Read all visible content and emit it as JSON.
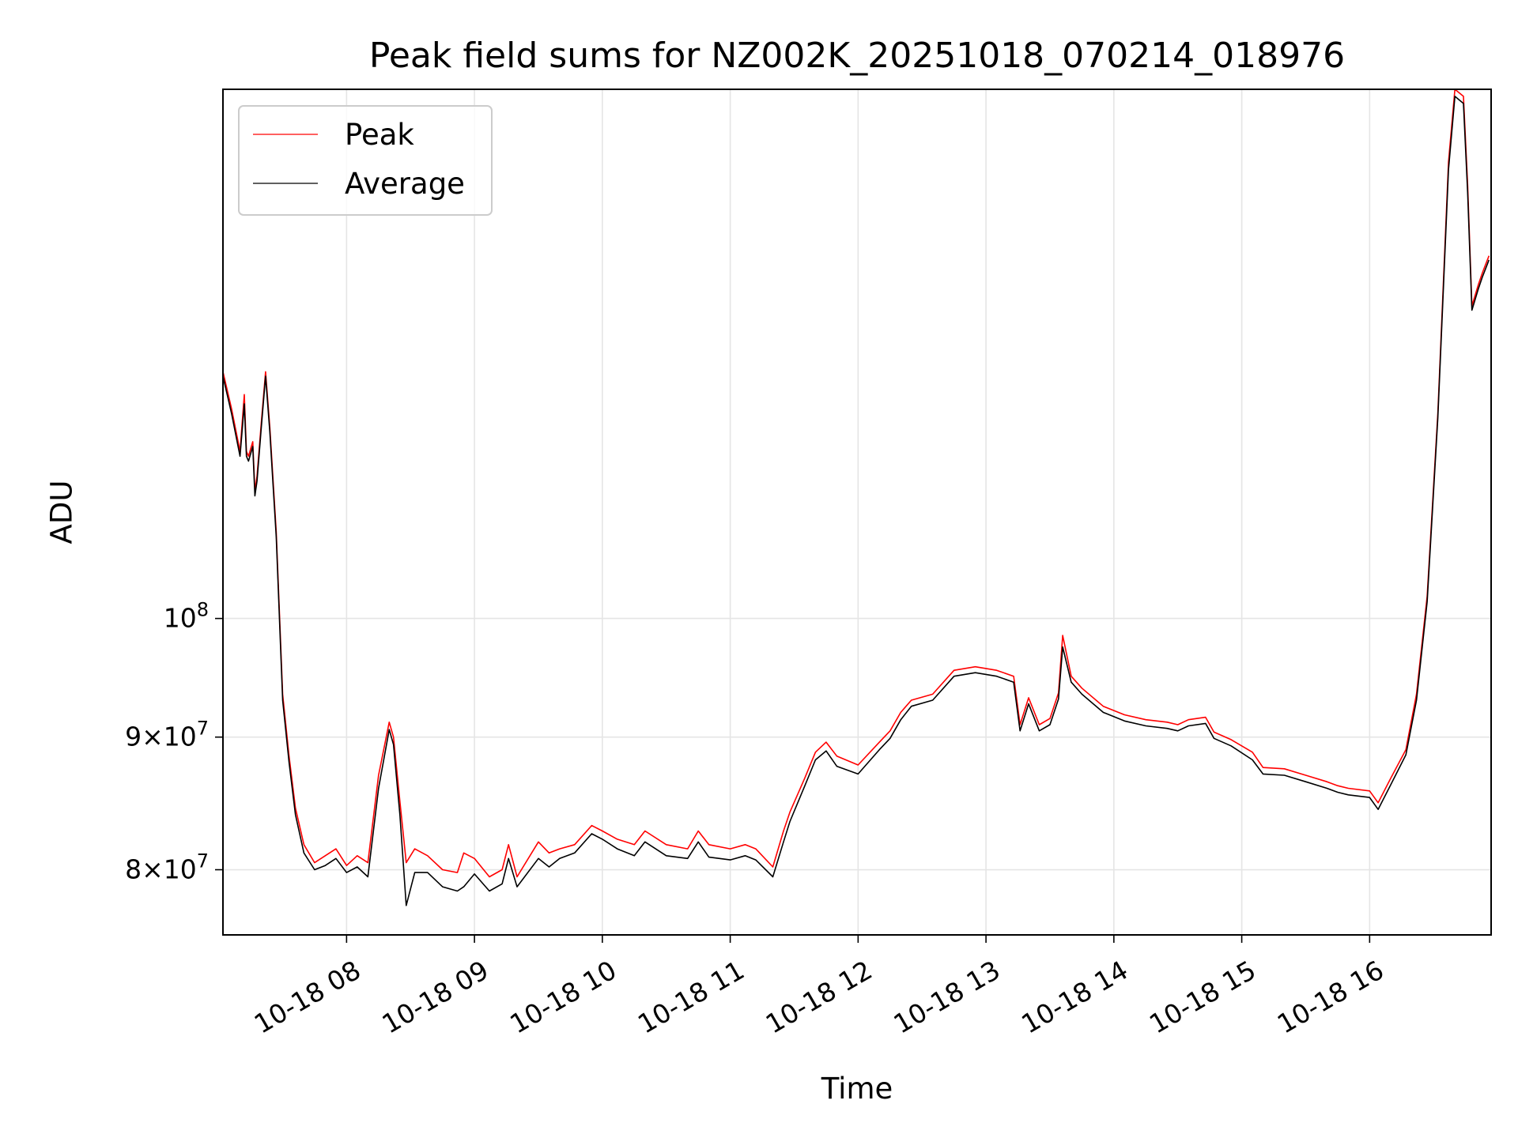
{
  "chart_data": {
    "type": "line",
    "title": "Peak field sums for NZ002K_20251018_070214_018976",
    "xlabel": "Time",
    "ylabel": "ADU",
    "yscale": "log",
    "grid": true,
    "legend_position": "top-left",
    "xlim": [
      "2025-10-18 07:02",
      "2025-10-18 16:57"
    ],
    "ylim": [
      75500000,
      160000000
    ],
    "x_ticks": [
      "10-18 08",
      "10-18 09",
      "10-18 10",
      "10-18 11",
      "10-18 12",
      "10-18 13",
      "10-18 14",
      "10-18 15",
      "10-18 16"
    ],
    "x_tick_values": [
      "2025-10-18 08:00",
      "2025-10-18 09:00",
      "2025-10-18 10:00",
      "2025-10-18 11:00",
      "2025-10-18 12:00",
      "2025-10-18 13:00",
      "2025-10-18 14:00",
      "2025-10-18 15:00",
      "2025-10-18 16:00"
    ],
    "y_ticks": [
      {
        "value": 80000000,
        "mantissa": "8",
        "exp": "7"
      },
      {
        "value": 90000000,
        "mantissa": "9",
        "exp": "7"
      },
      {
        "value": 100000000,
        "mantissa": "",
        "exp": "8"
      }
    ],
    "series": [
      {
        "name": "Peak",
        "color": "#ff0000",
        "x": [
          "2025-10-18 07:02",
          "2025-10-18 07:06",
          "2025-10-18 07:10",
          "2025-10-18 07:12",
          "2025-10-18 07:13",
          "2025-10-18 07:14",
          "2025-10-18 07:16",
          "2025-10-18 07:17",
          "2025-10-18 07:18",
          "2025-10-18 07:20",
          "2025-10-18 07:22",
          "2025-10-18 07:24",
          "2025-10-18 07:27",
          "2025-10-18 07:30",
          "2025-10-18 07:33",
          "2025-10-18 07:36",
          "2025-10-18 07:40",
          "2025-10-18 07:45",
          "2025-10-18 07:50",
          "2025-10-18 07:55",
          "2025-10-18 08:00",
          "2025-10-18 08:05",
          "2025-10-18 08:10",
          "2025-10-18 08:15",
          "2025-10-18 08:20",
          "2025-10-18 08:22",
          "2025-10-18 08:25",
          "2025-10-18 08:28",
          "2025-10-18 08:32",
          "2025-10-18 08:38",
          "2025-10-18 08:45",
          "2025-10-18 08:52",
          "2025-10-18 08:55",
          "2025-10-18 09:00",
          "2025-10-18 09:07",
          "2025-10-18 09:13",
          "2025-10-18 09:16",
          "2025-10-18 09:20",
          "2025-10-18 09:30",
          "2025-10-18 09:35",
          "2025-10-18 09:40",
          "2025-10-18 09:47",
          "2025-10-18 09:55",
          "2025-10-18 10:00",
          "2025-10-18 10:07",
          "2025-10-18 10:15",
          "2025-10-18 10:20",
          "2025-10-18 10:30",
          "2025-10-18 10:40",
          "2025-10-18 10:45",
          "2025-10-18 10:50",
          "2025-10-18 11:00",
          "2025-10-18 11:07",
          "2025-10-18 11:12",
          "2025-10-18 11:20",
          "2025-10-18 11:25",
          "2025-10-18 11:28",
          "2025-10-18 11:35",
          "2025-10-18 11:40",
          "2025-10-18 11:45",
          "2025-10-18 11:50",
          "2025-10-18 12:00",
          "2025-10-18 12:10",
          "2025-10-18 12:15",
          "2025-10-18 12:20",
          "2025-10-18 12:25",
          "2025-10-18 12:35",
          "2025-10-18 12:45",
          "2025-10-18 12:55",
          "2025-10-18 13:05",
          "2025-10-18 13:13",
          "2025-10-18 13:16",
          "2025-10-18 13:20",
          "2025-10-18 13:25",
          "2025-10-18 13:30",
          "2025-10-18 13:34",
          "2025-10-18 13:36",
          "2025-10-18 13:40",
          "2025-10-18 13:45",
          "2025-10-18 13:55",
          "2025-10-18 14:05",
          "2025-10-18 14:15",
          "2025-10-18 14:25",
          "2025-10-18 14:30",
          "2025-10-18 14:35",
          "2025-10-18 14:43",
          "2025-10-18 14:47",
          "2025-10-18 14:55",
          "2025-10-18 15:05",
          "2025-10-18 15:10",
          "2025-10-18 15:20",
          "2025-10-18 15:30",
          "2025-10-18 15:40",
          "2025-10-18 15:45",
          "2025-10-18 15:50",
          "2025-10-18 16:00",
          "2025-10-18 16:04",
          "2025-10-18 16:10",
          "2025-10-18 16:17",
          "2025-10-18 16:22",
          "2025-10-18 16:27",
          "2025-10-18 16:32",
          "2025-10-18 16:37",
          "2025-10-18 16:40",
          "2025-10-18 16:44",
          "2025-10-18 16:46",
          "2025-10-18 16:48",
          "2025-10-18 16:51",
          "2025-10-18 16:53",
          "2025-10-18 16:56"
        ],
        "y": [
          124500000,
          120500000,
          116000000,
          122000000,
          116000000,
          115500000,
          117000000,
          112000000,
          113500000,
          119000000,
          124500000,
          118500000,
          108000000,
          93500000,
          88500000,
          84500000,
          81800000,
          80500000,
          81000000,
          81500000,
          80300000,
          81000000,
          80500000,
          87000000,
          91200000,
          90000000,
          85000000,
          80500000,
          81500000,
          81000000,
          80000000,
          79800000,
          81200000,
          80800000,
          79500000,
          80000000,
          81800000,
          79500000,
          82000000,
          81200000,
          81500000,
          81800000,
          83200000,
          82800000,
          82200000,
          81800000,
          82800000,
          81800000,
          81500000,
          82800000,
          81800000,
          81500000,
          81800000,
          81500000,
          80200000,
          82800000,
          84200000,
          86800000,
          88800000,
          89600000,
          88500000,
          87800000,
          89600000,
          90500000,
          92000000,
          93000000,
          93500000,
          95500000,
          95800000,
          95500000,
          95000000,
          91000000,
          93200000,
          91000000,
          91500000,
          93600000,
          98500000,
          95000000,
          94000000,
          92500000,
          91800000,
          91400000,
          91200000,
          91000000,
          91400000,
          91600000,
          90400000,
          89800000,
          88800000,
          87600000,
          87500000,
          87000000,
          86500000,
          86200000,
          86000000,
          85800000,
          84900000,
          86800000,
          89000000,
          93500000,
          102000000,
          120000000,
          150000000,
          160000000,
          159000000,
          147000000,
          132000000,
          134500000,
          136000000,
          138000000
        ]
      },
      {
        "name": "Average",
        "color": "#000000",
        "x": [
          "2025-10-18 07:02",
          "2025-10-18 07:06",
          "2025-10-18 07:10",
          "2025-10-18 07:12",
          "2025-10-18 07:13",
          "2025-10-18 07:14",
          "2025-10-18 07:16",
          "2025-10-18 07:17",
          "2025-10-18 07:18",
          "2025-10-18 07:20",
          "2025-10-18 07:22",
          "2025-10-18 07:24",
          "2025-10-18 07:27",
          "2025-10-18 07:30",
          "2025-10-18 07:33",
          "2025-10-18 07:36",
          "2025-10-18 07:40",
          "2025-10-18 07:45",
          "2025-10-18 07:50",
          "2025-10-18 07:55",
          "2025-10-18 08:00",
          "2025-10-18 08:05",
          "2025-10-18 08:10",
          "2025-10-18 08:15",
          "2025-10-18 08:20",
          "2025-10-18 08:22",
          "2025-10-18 08:25",
          "2025-10-18 08:28",
          "2025-10-18 08:32",
          "2025-10-18 08:38",
          "2025-10-18 08:45",
          "2025-10-18 08:52",
          "2025-10-18 08:55",
          "2025-10-18 09:00",
          "2025-10-18 09:07",
          "2025-10-18 09:13",
          "2025-10-18 09:16",
          "2025-10-18 09:20",
          "2025-10-18 09:30",
          "2025-10-18 09:35",
          "2025-10-18 09:40",
          "2025-10-18 09:47",
          "2025-10-18 09:55",
          "2025-10-18 10:00",
          "2025-10-18 10:07",
          "2025-10-18 10:15",
          "2025-10-18 10:20",
          "2025-10-18 10:30",
          "2025-10-18 10:40",
          "2025-10-18 10:45",
          "2025-10-18 10:50",
          "2025-10-18 11:00",
          "2025-10-18 11:07",
          "2025-10-18 11:12",
          "2025-10-18 11:20",
          "2025-10-18 11:25",
          "2025-10-18 11:28",
          "2025-10-18 11:35",
          "2025-10-18 11:40",
          "2025-10-18 11:45",
          "2025-10-18 11:50",
          "2025-10-18 12:00",
          "2025-10-18 12:10",
          "2025-10-18 12:15",
          "2025-10-18 12:20",
          "2025-10-18 12:25",
          "2025-10-18 12:35",
          "2025-10-18 12:45",
          "2025-10-18 12:55",
          "2025-10-18 13:05",
          "2025-10-18 13:13",
          "2025-10-18 13:16",
          "2025-10-18 13:20",
          "2025-10-18 13:25",
          "2025-10-18 13:30",
          "2025-10-18 13:34",
          "2025-10-18 13:36",
          "2025-10-18 13:40",
          "2025-10-18 13:45",
          "2025-10-18 13:55",
          "2025-10-18 14:05",
          "2025-10-18 14:15",
          "2025-10-18 14:25",
          "2025-10-18 14:30",
          "2025-10-18 14:35",
          "2025-10-18 14:43",
          "2025-10-18 14:47",
          "2025-10-18 14:55",
          "2025-10-18 15:05",
          "2025-10-18 15:10",
          "2025-10-18 15:20",
          "2025-10-18 15:30",
          "2025-10-18 15:40",
          "2025-10-18 15:45",
          "2025-10-18 15:50",
          "2025-10-18 16:00",
          "2025-10-18 16:04",
          "2025-10-18 16:10",
          "2025-10-18 16:17",
          "2025-10-18 16:22",
          "2025-10-18 16:27",
          "2025-10-18 16:32",
          "2025-10-18 16:37",
          "2025-10-18 16:40",
          "2025-10-18 16:44",
          "2025-10-18 16:46",
          "2025-10-18 16:48",
          "2025-10-18 16:51",
          "2025-10-18 16:53",
          "2025-10-18 16:56"
        ],
        "y": [
          124000000,
          120000000,
          115500000,
          121000000,
          115500000,
          115000000,
          116500000,
          111500000,
          113000000,
          118500000,
          124000000,
          118000000,
          107500000,
          93000000,
          88000000,
          84000000,
          81200000,
          80000000,
          80300000,
          80800000,
          79800000,
          80200000,
          79500000,
          86000000,
          90600000,
          89400000,
          84000000,
          77500000,
          79800000,
          79800000,
          78800000,
          78500000,
          78800000,
          79700000,
          78500000,
          79000000,
          80800000,
          78800000,
          80800000,
          80200000,
          80800000,
          81200000,
          82600000,
          82200000,
          81500000,
          81000000,
          82000000,
          81000000,
          80800000,
          82000000,
          80900000,
          80700000,
          81000000,
          80700000,
          79500000,
          82000000,
          83500000,
          86200000,
          88200000,
          88900000,
          87700000,
          87100000,
          89000000,
          89900000,
          91400000,
          92500000,
          93000000,
          95000000,
          95300000,
          95000000,
          94500000,
          90500000,
          92700000,
          90500000,
          91000000,
          93100000,
          97500000,
          94500000,
          93500000,
          92000000,
          91300000,
          90900000,
          90700000,
          90500000,
          90900000,
          91100000,
          89900000,
          89300000,
          88200000,
          87100000,
          87000000,
          86500000,
          86000000,
          85700000,
          85500000,
          85300000,
          84400000,
          86300000,
          88600000,
          93000000,
          101500000,
          119500000,
          149000000,
          159000000,
          158000000,
          146000000,
          131500000,
          134000000,
          135500000,
          137500000
        ]
      }
    ]
  }
}
